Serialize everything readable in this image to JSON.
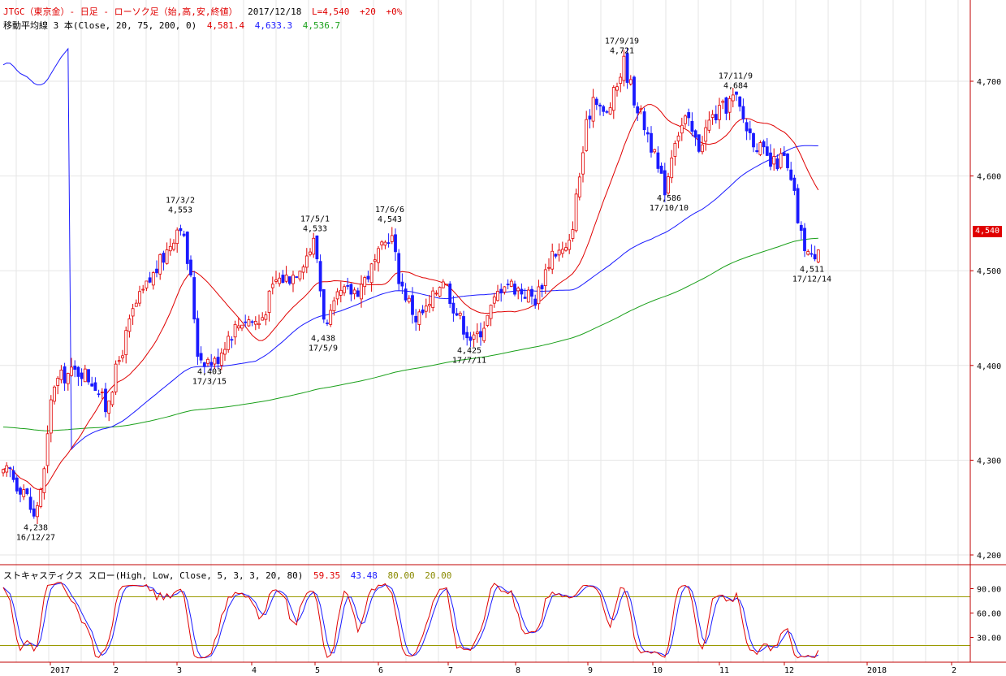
{
  "header": {
    "title": "JTGC（東京金）- 日足 - ローソク足（始,高,安,終値）",
    "date": "2017/12/18",
    "last": "L=4,540",
    "change": "+20",
    "change_pct": "+0%"
  },
  "ma_legend": {
    "label": "移動平均線 3 本(Close, 20, 75, 200, 0)",
    "v20": "4,581.4",
    "v75": "4,633.3",
    "v200": "4,536.7",
    "c20": "#e00000",
    "c75": "#1a1aff",
    "c200": "#1aa01a"
  },
  "stoch_legend": {
    "label": "ストキャスティクス スロー(High, Low, Close, 5, 3, 3, 20, 80)",
    "k": "59.35",
    "d": "43.48",
    "upper": "80.00",
    "lower": "20.00"
  },
  "last_badge": "4,540",
  "chart_data": [
    {
      "type": "candlestick",
      "name": "price",
      "ylim": [
        4190,
        4800
      ],
      "yticks": [
        4200,
        4300,
        4400,
        4500,
        4600,
        4700
      ],
      "ytick_labels": [
        "4,200",
        "4,300",
        "4,400",
        "4,500",
        "4,600",
        "4,700"
      ],
      "xticks": [
        "2017",
        "2",
        "3",
        "4",
        "5",
        "6",
        "7",
        "8",
        "9",
        "10",
        "11",
        "12",
        "2018",
        "2"
      ],
      "anchors": [
        {
          "label": "4,238\n16/12/27",
          "value": 4238
        },
        {
          "label": "4,403\n17/3/15",
          "value": 4403
        },
        {
          "label": "17/3/2\n4,553",
          "value": 4553
        },
        {
          "label": "17/5/1\n4,533",
          "value": 4533
        },
        {
          "label": "4,438\n17/5/9",
          "value": 4438
        },
        {
          "label": "17/6/6\n4,543",
          "value": 4543
        },
        {
          "label": "4,425\n17/7/11",
          "value": 4425
        },
        {
          "label": "17/9/19\n4,721",
          "value": 4721
        },
        {
          "label": "4,586\n17/10/10",
          "value": 4586
        },
        {
          "label": "17/11/9\n4,684",
          "value": 4684
        },
        {
          "label": "4,511\n17/12/14",
          "value": 4511
        }
      ],
      "annotations": [
        "4,238\n16/12/27",
        "17/3/2\n4,553",
        "4,403\n17/3/15",
        "17/5/1\n4,533",
        "4,438\n17/5/9",
        "17/6/6\n4,543",
        "4,425\n17/7/11",
        "17/9/19\n4,721",
        "4,586\n17/10/10",
        "17/11/9\n4,684",
        "4,511\n17/12/14"
      ],
      "last_close": 4540,
      "up_color": "#e00000",
      "down_color": "#1a1aff"
    },
    {
      "type": "line",
      "name": "stochastic",
      "ylim": [
        0,
        110
      ],
      "yticks": [
        30,
        60,
        90
      ],
      "ytick_labels": [
        "30.00",
        "60.00",
        "90.00"
      ],
      "levels": [
        20,
        80
      ],
      "series": [
        {
          "name": "%K",
          "color": "#e00000",
          "last": 59.35
        },
        {
          "name": "%D",
          "color": "#1a1aff",
          "last": 43.48
        }
      ]
    }
  ]
}
